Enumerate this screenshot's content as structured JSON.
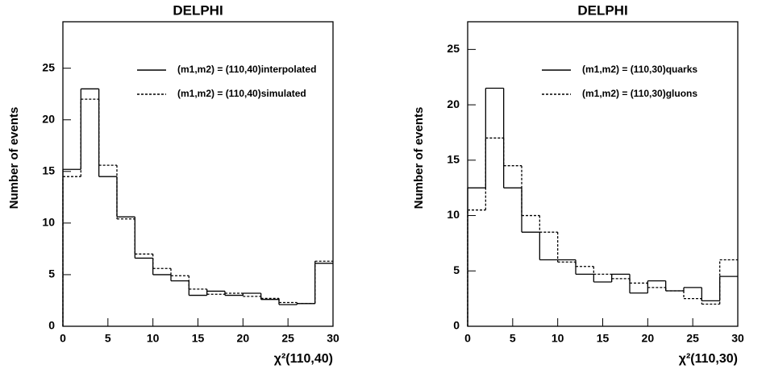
{
  "chart_data": [
    {
      "type": "histogram",
      "title": "DELPHI",
      "xlabel": "χ²(110,40)",
      "ylabel": "Number of events",
      "bins": [
        0,
        2,
        4,
        6,
        8,
        10,
        12,
        14,
        16,
        18,
        20,
        22,
        24,
        26,
        28,
        30
      ],
      "series": [
        {
          "name": "(m1,m2) = (110,40)interpolated",
          "color": "#000000",
          "dash": "solid",
          "values": [
            15.2,
            23,
            14.5,
            10.6,
            6.6,
            5.0,
            4.4,
            3.0,
            3.4,
            3.0,
            3.2,
            2.6,
            2.1,
            2.2,
            6.1
          ]
        },
        {
          "name": "(m1,m2) = (110,40)simulated",
          "color": "#000000",
          "dash": "dotted",
          "values": [
            14.5,
            22,
            15.6,
            10.4,
            7.0,
            5.6,
            4.9,
            3.6,
            3.1,
            3.2,
            2.9,
            2.7,
            2.3,
            2.2,
            6.3
          ]
        }
      ],
      "xlim": [
        0,
        30
      ],
      "xticks": [
        0,
        5,
        10,
        15,
        20,
        25,
        30
      ],
      "ylim": [
        0,
        29.5
      ],
      "yticks": [
        0,
        5,
        10,
        15,
        20,
        25
      ]
    },
    {
      "type": "histogram",
      "title": "DELPHI",
      "xlabel": "χ²(110,30)",
      "ylabel": "Number of events",
      "bins": [
        0,
        2,
        4,
        6,
        8,
        10,
        12,
        14,
        16,
        18,
        20,
        22,
        24,
        26,
        28,
        30
      ],
      "series": [
        {
          "name": "(m1,m2) = (110,30)quarks",
          "color": "#000000",
          "dash": "solid",
          "values": [
            12.5,
            21.5,
            12.5,
            8.5,
            6.0,
            6.0,
            4.7,
            4.0,
            4.7,
            3.0,
            4.1,
            3.2,
            3.5,
            2.3,
            4.5
          ]
        },
        {
          "name": "(m1,m2) = (110,30)gluons",
          "color": "#000000",
          "dash": "dotted",
          "values": [
            10.5,
            17,
            14.5,
            10.0,
            8.5,
            5.8,
            5.4,
            4.7,
            4.3,
            3.9,
            3.5,
            3.2,
            2.5,
            2.0,
            6.0
          ]
        }
      ],
      "xlim": [
        0,
        30
      ],
      "xticks": [
        0,
        5,
        10,
        15,
        20,
        25,
        30
      ],
      "ylim": [
        0,
        27.5
      ],
      "yticks": [
        0,
        5,
        10,
        15,
        20,
        25
      ]
    }
  ]
}
